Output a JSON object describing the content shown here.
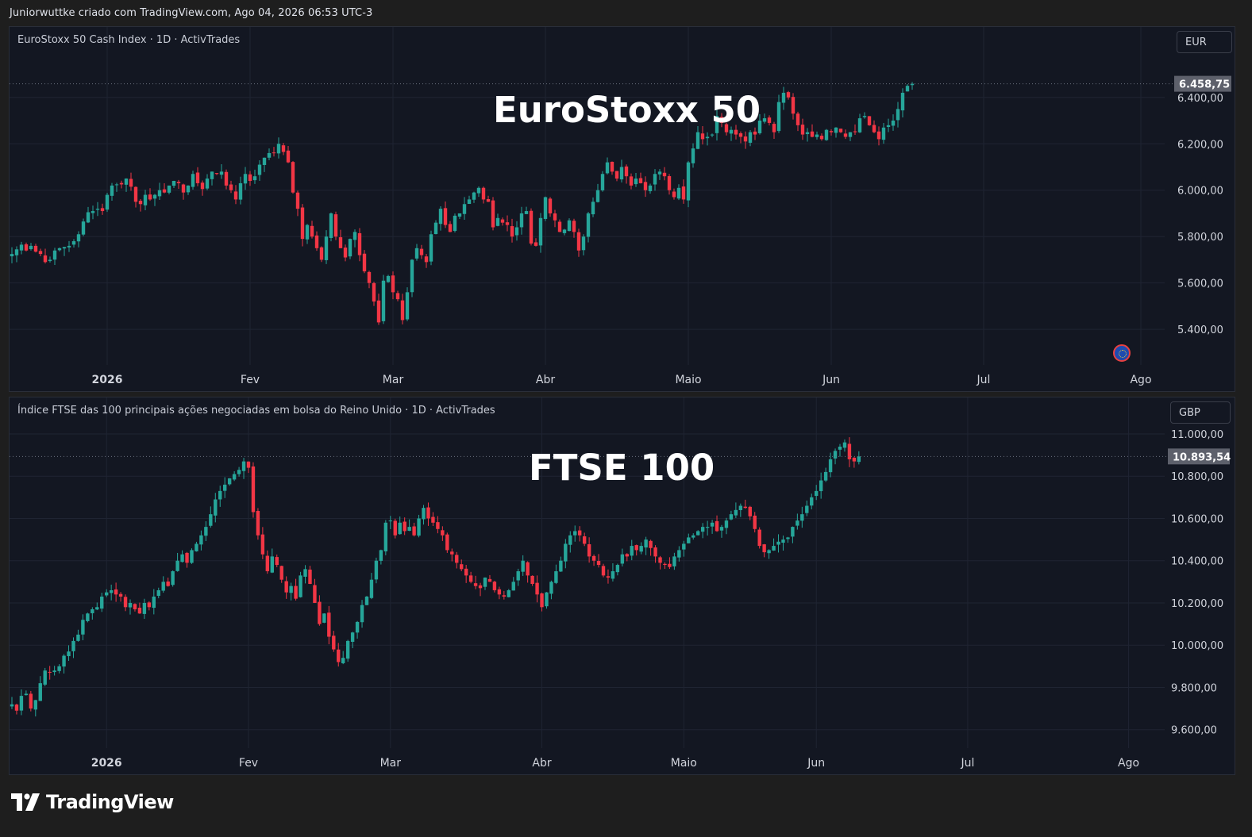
{
  "header": {
    "text": "Juniorwuttke criado com TradingView.com, Ago 04, 2026 06:53 UTC-3"
  },
  "footer": {
    "brand": "TradingView",
    "logo_icon": "tradingview-logo-icon"
  },
  "colors": {
    "up": "#26a69a",
    "down": "#f23645",
    "background": "#131722",
    "grid": "#1f2432"
  },
  "chart_data": [
    {
      "type": "candlestick",
      "title": "EuroStoxx 50 Cash Index · 1D · ActivTrades",
      "overlay_label": "EuroStoxx 50",
      "currency": "EUR",
      "last_price_label": "6.458,75",
      "last_price": 6458.75,
      "ylim": [
        5250,
        6560
      ],
      "yticks": [
        {
          "value": 6400,
          "label": "6.400,00"
        },
        {
          "value": 6200,
          "label": "6.200,00"
        },
        {
          "value": 6000,
          "label": "6.000,00"
        },
        {
          "value": 5800,
          "label": "5.800,00"
        },
        {
          "value": 5600,
          "label": "5.600,00"
        },
        {
          "value": 5400,
          "label": "5.400,00"
        }
      ],
      "xticks": [
        {
          "index": 20,
          "label": "2026",
          "bold": true
        },
        {
          "index": 50,
          "label": "Fev"
        },
        {
          "index": 80,
          "label": "Mar"
        },
        {
          "index": 112,
          "label": "Abr"
        },
        {
          "index": 142,
          "label": "Maio"
        },
        {
          "index": 172,
          "label": "Jun"
        },
        {
          "index": 204,
          "label": "Jul"
        },
        {
          "index": 237,
          "label": "Ago"
        }
      ],
      "period": "2025-12-15 to 2026-08-04 (daily)",
      "closes": [
        5725,
        5745,
        5765,
        5740,
        5760,
        5735,
        5725,
        5690,
        5700,
        5740,
        5750,
        5755,
        5760,
        5780,
        5810,
        5865,
        5905,
        5910,
        5920,
        5910,
        5980,
        6020,
        6025,
        6025,
        6050,
        6015,
        5950,
        5940,
        5980,
        5960,
        5980,
        6000,
        5990,
        6020,
        6040,
        6030,
        5990,
        6020,
        6070,
        6030,
        6005,
        6050,
        6080,
        6070,
        6080,
        6020,
        6000,
        5960,
        6030,
        6070,
        6040,
        6060,
        6110,
        6140,
        6160,
        6160,
        6200,
        6165,
        6120,
        5990,
        5920,
        5790,
        5850,
        5800,
        5750,
        5700,
        5800,
        5900,
        5800,
        5750,
        5710,
        5790,
        5820,
        5720,
        5650,
        5600,
        5520,
        5430,
        5610,
        5630,
        5560,
        5530,
        5440,
        5560,
        5700,
        5750,
        5720,
        5690,
        5810,
        5860,
        5920,
        5850,
        5820,
        5890,
        5900,
        5940,
        5960,
        5990,
        6010,
        5960,
        5950,
        5840,
        5880,
        5860,
        5850,
        5800,
        5840,
        5900,
        5910,
        5770,
        5760,
        5880,
        5970,
        5900,
        5870,
        5820,
        5830,
        5870,
        5820,
        5740,
        5800,
        5900,
        5950,
        6000,
        6070,
        6120,
        6080,
        6050,
        6100,
        6060,
        6020,
        6050,
        6030,
        6000,
        6020,
        6070,
        6080,
        6060,
        6000,
        5970,
        6010,
        5960,
        6120,
        6180,
        6250,
        6220,
        6230,
        6240,
        6320,
        6290,
        6250,
        6260,
        6240,
        6230,
        6210,
        6250,
        6240,
        6300,
        6310,
        6290,
        6250,
        6380,
        6420,
        6400,
        6330,
        6280,
        6240,
        6250,
        6230,
        6240,
        6220,
        6260,
        6250,
        6270,
        6250,
        6230,
        6250,
        6250,
        6310,
        6320,
        6280,
        6250,
        6220,
        6270,
        6280,
        6300,
        6350,
        6420,
        6450,
        6458.75
      ]
    },
    {
      "type": "candlestick",
      "title": "Índice FTSE das 100 principais ações negociadas em bolsa do Reino Unido · 1D · ActivTrades",
      "overlay_label": "FTSE 100",
      "currency": "GBP",
      "last_price_label": "10.893,54",
      "last_price": 10893.54,
      "ylim": [
        9520,
        11030
      ],
      "yticks": [
        {
          "value": 11000,
          "label": "11.000,00"
        },
        {
          "value": 10800,
          "label": "10.800,00"
        },
        {
          "value": 10600,
          "label": "10.600,00"
        },
        {
          "value": 10400,
          "label": "10.400,00"
        },
        {
          "value": 10200,
          "label": "10.200,00"
        },
        {
          "value": 10000,
          "label": "10.000,00"
        },
        {
          "value": 9800,
          "label": "9.800,00"
        },
        {
          "value": 9600,
          "label": "9.600,00"
        }
      ],
      "xticks": [
        {
          "index": 20,
          "label": "2026",
          "bold": true
        },
        {
          "index": 50,
          "label": "Fev"
        },
        {
          "index": 80,
          "label": "Mar"
        },
        {
          "index": 112,
          "label": "Abr"
        },
        {
          "index": 142,
          "label": "Maio"
        },
        {
          "index": 170,
          "label": "Jun"
        },
        {
          "index": 202,
          "label": "Jul"
        },
        {
          "index": 236,
          "label": "Ago"
        }
      ],
      "period": "2025-12-15 to 2026-08-04 (daily)",
      "closes": [
        9720,
        9690,
        9760,
        9770,
        9700,
        9740,
        9820,
        9880,
        9870,
        9880,
        9900,
        9950,
        9970,
        10020,
        10050,
        10120,
        10150,
        10170,
        10180,
        10230,
        10250,
        10260,
        10240,
        10230,
        10180,
        10200,
        10170,
        10150,
        10200,
        10180,
        10230,
        10260,
        10300,
        10280,
        10350,
        10400,
        10430,
        10390,
        10450,
        10480,
        10520,
        10560,
        10620,
        10690,
        10730,
        10760,
        10790,
        10810,
        10830,
        10870,
        10840,
        10630,
        10520,
        10430,
        10350,
        10420,
        10380,
        10310,
        10250,
        10280,
        10220,
        10330,
        10360,
        10290,
        10200,
        10100,
        10150,
        10040,
        9980,
        9920,
        9940,
        10020,
        10060,
        10110,
        10190,
        10230,
        10310,
        10400,
        10450,
        10580,
        10590,
        10520,
        10580,
        10540,
        10560,
        10520,
        10600,
        10650,
        10600,
        10580,
        10550,
        10520,
        10450,
        10430,
        10390,
        10360,
        10330,
        10300,
        10280,
        10270,
        10320,
        10300,
        10260,
        10240,
        10230,
        10260,
        10300,
        10350,
        10400,
        10330,
        10290,
        10240,
        10180,
        10250,
        10300,
        10350,
        10400,
        10480,
        10520,
        10540,
        10520,
        10480,
        10420,
        10400,
        10380,
        10330,
        10320,
        10350,
        10380,
        10430,
        10420,
        10470,
        10450,
        10470,
        10500,
        10460,
        10420,
        10390,
        10380,
        10370,
        10420,
        10450,
        10480,
        10510,
        10520,
        10540,
        10560,
        10560,
        10580,
        10540,
        10560,
        10590,
        10620,
        10640,
        10660,
        10650,
        10610,
        10550,
        10470,
        10440,
        10450,
        10470,
        10490,
        10500,
        10510,
        10560,
        10590,
        10620,
        10660,
        10700,
        10730,
        10780,
        10820,
        10880,
        10920,
        10940,
        10960,
        10880,
        10870,
        10893.54
      ]
    }
  ]
}
